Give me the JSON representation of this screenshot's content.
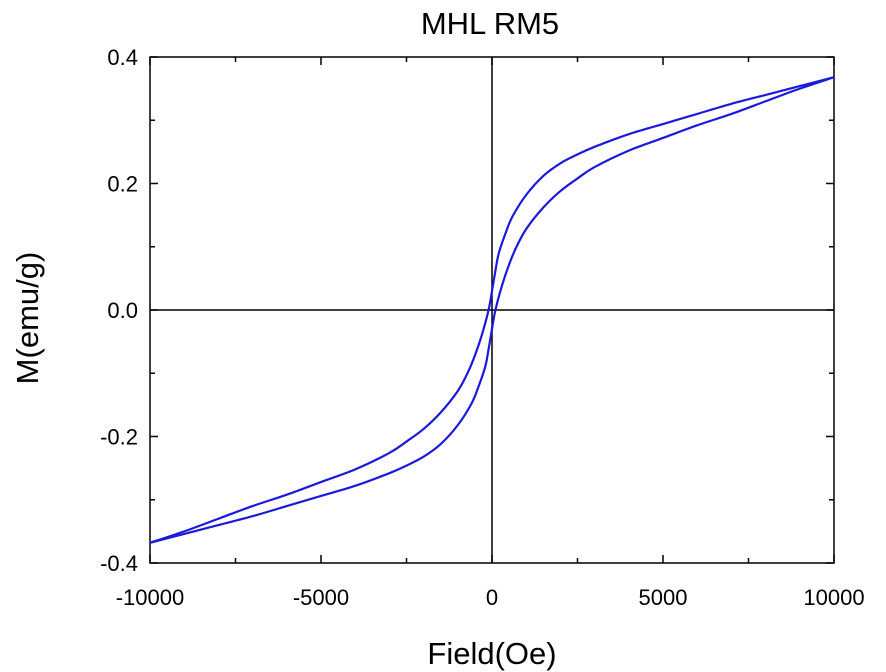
{
  "chart_data": {
    "type": "line",
    "title": "MHL RM5",
    "xlabel": "Field(Oe)",
    "ylabel": "M(emu/g)",
    "xlim": [
      -10000,
      10000
    ],
    "ylim": [
      -0.4,
      0.4
    ],
    "x_ticks": [
      -10000,
      -5000,
      0,
      5000,
      10000
    ],
    "x_tick_labels": [
      "-10000",
      "-5000",
      "0",
      "5000",
      "10000"
    ],
    "y_ticks": [
      -0.4,
      -0.2,
      0.0,
      0.2,
      0.4
    ],
    "y_tick_labels": [
      "-0.4",
      "-0.2",
      "0.0",
      "0.2",
      "0.4"
    ],
    "zero_lines": true,
    "grid": false,
    "line_color": "#1a1adc",
    "series": [
      {
        "x": [
          -10000,
          -9000,
          -8000,
          -7000,
          -6000,
          -5000,
          -4000,
          -3000,
          -2500,
          -2000,
          -1500,
          -1000,
          -700,
          -500,
          -300,
          -100,
          0,
          100,
          200,
          400,
          600,
          1000,
          1500,
          2000,
          2500,
          3000,
          4000,
          5000,
          6000,
          7000,
          8000,
          9000,
          10000
        ],
        "y": [
          -0.368,
          -0.35,
          -0.33,
          -0.31,
          -0.292,
          -0.272,
          -0.252,
          -0.226,
          -0.208,
          -0.188,
          -0.162,
          -0.128,
          -0.098,
          -0.072,
          -0.04,
          0.0,
          0.03,
          0.062,
          0.09,
          0.122,
          0.148,
          0.182,
          0.212,
          0.232,
          0.246,
          0.258,
          0.278,
          0.294,
          0.31,
          0.326,
          0.34,
          0.354,
          0.368
        ]
      },
      {
        "x": [
          10000,
          9000,
          8000,
          7000,
          6000,
          5000,
          4000,
          3000,
          2500,
          2000,
          1500,
          1000,
          700,
          500,
          300,
          100,
          0,
          -100,
          -200,
          -400,
          -600,
          -1000,
          -1500,
          -2000,
          -2500,
          -3000,
          -4000,
          -5000,
          -6000,
          -7000,
          -8000,
          -9000,
          -10000
        ],
        "y": [
          0.368,
          0.35,
          0.33,
          0.31,
          0.292,
          0.272,
          0.252,
          0.226,
          0.208,
          0.188,
          0.162,
          0.128,
          0.098,
          0.072,
          0.04,
          0.0,
          -0.03,
          -0.062,
          -0.09,
          -0.122,
          -0.148,
          -0.182,
          -0.212,
          -0.232,
          -0.246,
          -0.258,
          -0.278,
          -0.294,
          -0.31,
          -0.326,
          -0.34,
          -0.354,
          -0.368
        ]
      }
    ]
  }
}
